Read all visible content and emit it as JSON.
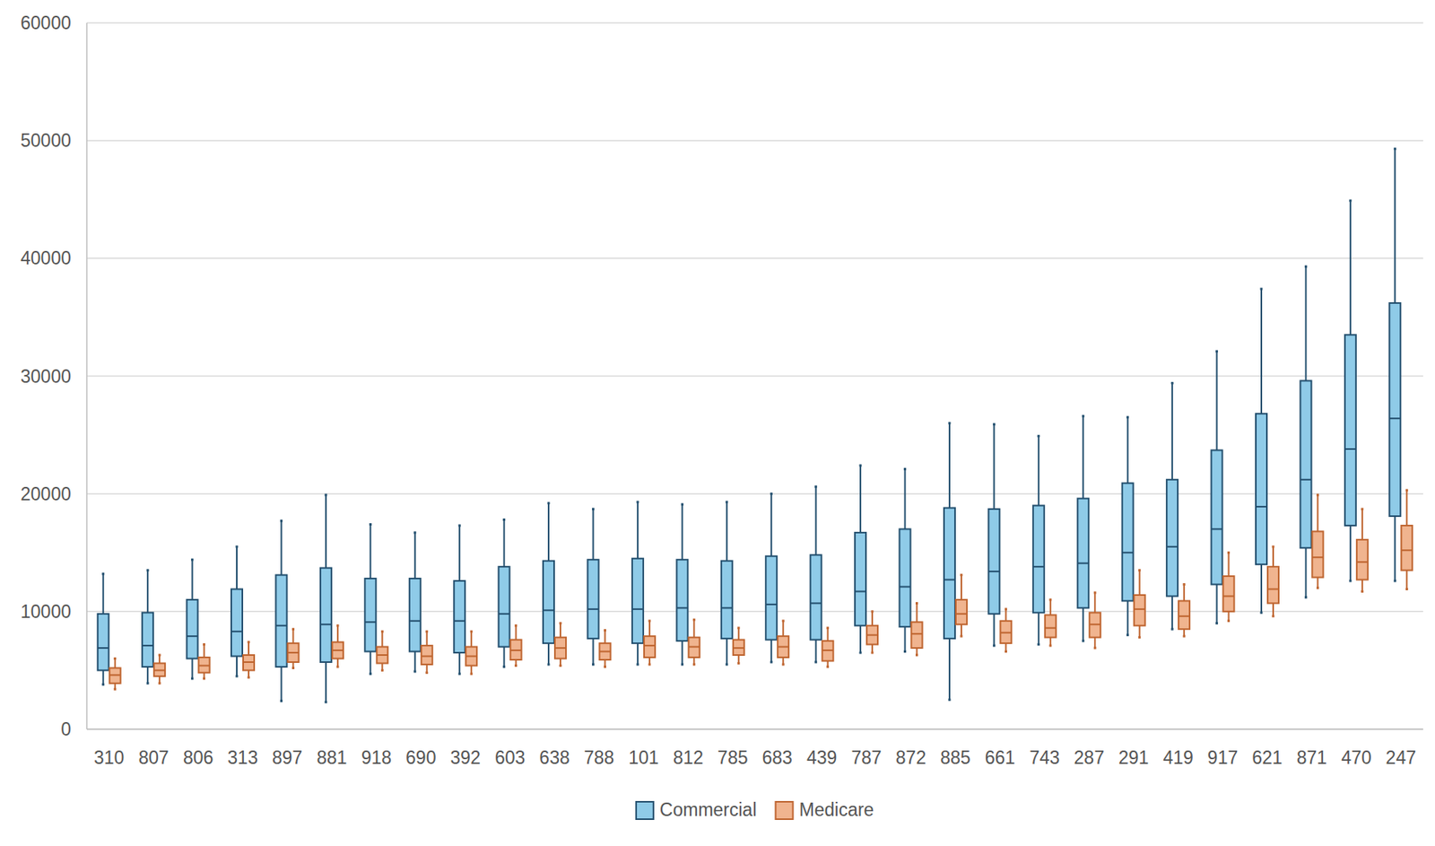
{
  "chart_data": {
    "type": "box",
    "categories": [
      "310",
      "807",
      "806",
      "313",
      "897",
      "881",
      "918",
      "690",
      "392",
      "603",
      "638",
      "788",
      "101",
      "812",
      "785",
      "683",
      "439",
      "787",
      "872",
      "885",
      "661",
      "743",
      "287",
      "291",
      "419",
      "917",
      "621",
      "871",
      "470",
      "247"
    ],
    "series": [
      {
        "name": "Commercial",
        "color": "#8fcbe8",
        "values": [
          {
            "min": 3800,
            "q1": 5000,
            "median": 6900,
            "q3": 9800,
            "max": 13200
          },
          {
            "min": 3900,
            "q1": 5300,
            "median": 7100,
            "q3": 9900,
            "max": 13500
          },
          {
            "min": 4300,
            "q1": 6000,
            "median": 7900,
            "q3": 11000,
            "max": 14400
          },
          {
            "min": 4500,
            "q1": 6200,
            "median": 8300,
            "q3": 11900,
            "max": 15500
          },
          {
            "min": 2400,
            "q1": 5300,
            "median": 8800,
            "q3": 13100,
            "max": 17700
          },
          {
            "min": 2300,
            "q1": 5700,
            "median": 8900,
            "q3": 13700,
            "max": 19900
          },
          {
            "min": 4700,
            "q1": 6600,
            "median": 9100,
            "q3": 12800,
            "max": 17400
          },
          {
            "min": 4900,
            "q1": 6600,
            "median": 9200,
            "q3": 12800,
            "max": 16700
          },
          {
            "min": 4700,
            "q1": 6500,
            "median": 9200,
            "q3": 12600,
            "max": 17300
          },
          {
            "min": 5300,
            "q1": 7000,
            "median": 9800,
            "q3": 13800,
            "max": 17800
          },
          {
            "min": 5500,
            "q1": 7300,
            "median": 10100,
            "q3": 14300,
            "max": 19200
          },
          {
            "min": 5500,
            "q1": 7700,
            "median": 10200,
            "q3": 14400,
            "max": 18700
          },
          {
            "min": 5500,
            "q1": 7300,
            "median": 10200,
            "q3": 14500,
            "max": 19300
          },
          {
            "min": 5500,
            "q1": 7500,
            "median": 10300,
            "q3": 14400,
            "max": 19100
          },
          {
            "min": 5500,
            "q1": 7700,
            "median": 10300,
            "q3": 14300,
            "max": 19300
          },
          {
            "min": 5700,
            "q1": 7600,
            "median": 10600,
            "q3": 14700,
            "max": 20000
          },
          {
            "min": 5700,
            "q1": 7600,
            "median": 10700,
            "q3": 14800,
            "max": 20600
          },
          {
            "min": 6500,
            "q1": 8800,
            "median": 11700,
            "q3": 16700,
            "max": 22400
          },
          {
            "min": 6600,
            "q1": 8700,
            "median": 12100,
            "q3": 17000,
            "max": 22100
          },
          {
            "min": 2500,
            "q1": 7700,
            "median": 12700,
            "q3": 18800,
            "max": 26000
          },
          {
            "min": 7100,
            "q1": 9800,
            "median": 13400,
            "q3": 18700,
            "max": 25900
          },
          {
            "min": 7200,
            "q1": 9900,
            "median": 13800,
            "q3": 19000,
            "max": 24900
          },
          {
            "min": 7500,
            "q1": 10300,
            "median": 14100,
            "q3": 19600,
            "max": 26600
          },
          {
            "min": 8000,
            "q1": 10900,
            "median": 15000,
            "q3": 20900,
            "max": 26500
          },
          {
            "min": 8500,
            "q1": 11300,
            "median": 15500,
            "q3": 21200,
            "max": 29400
          },
          {
            "min": 9000,
            "q1": 12300,
            "median": 17000,
            "q3": 23700,
            "max": 32100
          },
          {
            "min": 9900,
            "q1": 14000,
            "median": 18900,
            "q3": 26800,
            "max": 37400
          },
          {
            "min": 11200,
            "q1": 15400,
            "median": 21200,
            "q3": 29600,
            "max": 39300
          },
          {
            "min": 12600,
            "q1": 17300,
            "median": 23800,
            "q3": 33500,
            "max": 44900
          },
          {
            "min": 12600,
            "q1": 18100,
            "median": 26400,
            "q3": 36200,
            "max": 49300
          }
        ]
      },
      {
        "name": "Medicare",
        "color": "#f0b48f",
        "values": [
          {
            "min": 3400,
            "q1": 3900,
            "median": 4600,
            "q3": 5200,
            "max": 6000
          },
          {
            "min": 3900,
            "q1": 4500,
            "median": 5000,
            "q3": 5600,
            "max": 6300
          },
          {
            "min": 4300,
            "q1": 4800,
            "median": 5400,
            "q3": 6100,
            "max": 7200
          },
          {
            "min": 4400,
            "q1": 5000,
            "median": 5700,
            "q3": 6300,
            "max": 7400
          },
          {
            "min": 5200,
            "q1": 5700,
            "median": 6500,
            "q3": 7300,
            "max": 8500
          },
          {
            "min": 5300,
            "q1": 6000,
            "median": 6700,
            "q3": 7400,
            "max": 8800
          },
          {
            "min": 5000,
            "q1": 5600,
            "median": 6300,
            "q3": 7000,
            "max": 8300
          },
          {
            "min": 4800,
            "q1": 5500,
            "median": 6200,
            "q3": 7100,
            "max": 8300
          },
          {
            "min": 4700,
            "q1": 5400,
            "median": 6200,
            "q3": 7000,
            "max": 8300
          },
          {
            "min": 5400,
            "q1": 5900,
            "median": 6700,
            "q3": 7600,
            "max": 8800
          },
          {
            "min": 5400,
            "q1": 6000,
            "median": 6900,
            "q3": 7800,
            "max": 9000
          },
          {
            "min": 5300,
            "q1": 5900,
            "median": 6600,
            "q3": 7300,
            "max": 8400
          },
          {
            "min": 5500,
            "q1": 6100,
            "median": 7100,
            "q3": 7900,
            "max": 9200
          },
          {
            "min": 5500,
            "q1": 6100,
            "median": 7000,
            "q3": 7800,
            "max": 9300
          },
          {
            "min": 5600,
            "q1": 6300,
            "median": 6900,
            "q3": 7600,
            "max": 8600
          },
          {
            "min": 5500,
            "q1": 6100,
            "median": 7000,
            "q3": 7900,
            "max": 9200
          },
          {
            "min": 5300,
            "q1": 5800,
            "median": 6700,
            "q3": 7500,
            "max": 8600
          },
          {
            "min": 6500,
            "q1": 7200,
            "median": 8000,
            "q3": 8800,
            "max": 10000
          },
          {
            "min": 6300,
            "q1": 6900,
            "median": 8100,
            "q3": 9100,
            "max": 10700
          },
          {
            "min": 7900,
            "q1": 8900,
            "median": 9800,
            "q3": 11000,
            "max": 13100
          },
          {
            "min": 6600,
            "q1": 7300,
            "median": 8200,
            "q3": 9200,
            "max": 10200
          },
          {
            "min": 7100,
            "q1": 7800,
            "median": 8600,
            "q3": 9700,
            "max": 11000
          },
          {
            "min": 6900,
            "q1": 7800,
            "median": 8900,
            "q3": 9900,
            "max": 11600
          },
          {
            "min": 7800,
            "q1": 8800,
            "median": 10200,
            "q3": 11400,
            "max": 13500
          },
          {
            "min": 7900,
            "q1": 8500,
            "median": 9600,
            "q3": 10900,
            "max": 12300
          },
          {
            "min": 9200,
            "q1": 10000,
            "median": 11300,
            "q3": 13000,
            "max": 15000
          },
          {
            "min": 9600,
            "q1": 10700,
            "median": 11900,
            "q3": 13800,
            "max": 15500
          },
          {
            "min": 12000,
            "q1": 12900,
            "median": 14600,
            "q3": 16800,
            "max": 19900
          },
          {
            "min": 11700,
            "q1": 12700,
            "median": 14200,
            "q3": 16100,
            "max": 18700
          },
          {
            "min": 11900,
            "q1": 13500,
            "median": 15200,
            "q3": 17300,
            "max": 20300
          }
        ]
      }
    ],
    "ylim": [
      0,
      60000
    ],
    "yticks": [
      0,
      10000,
      20000,
      30000,
      40000,
      50000,
      60000
    ],
    "grid": true,
    "legend": "bottom"
  }
}
